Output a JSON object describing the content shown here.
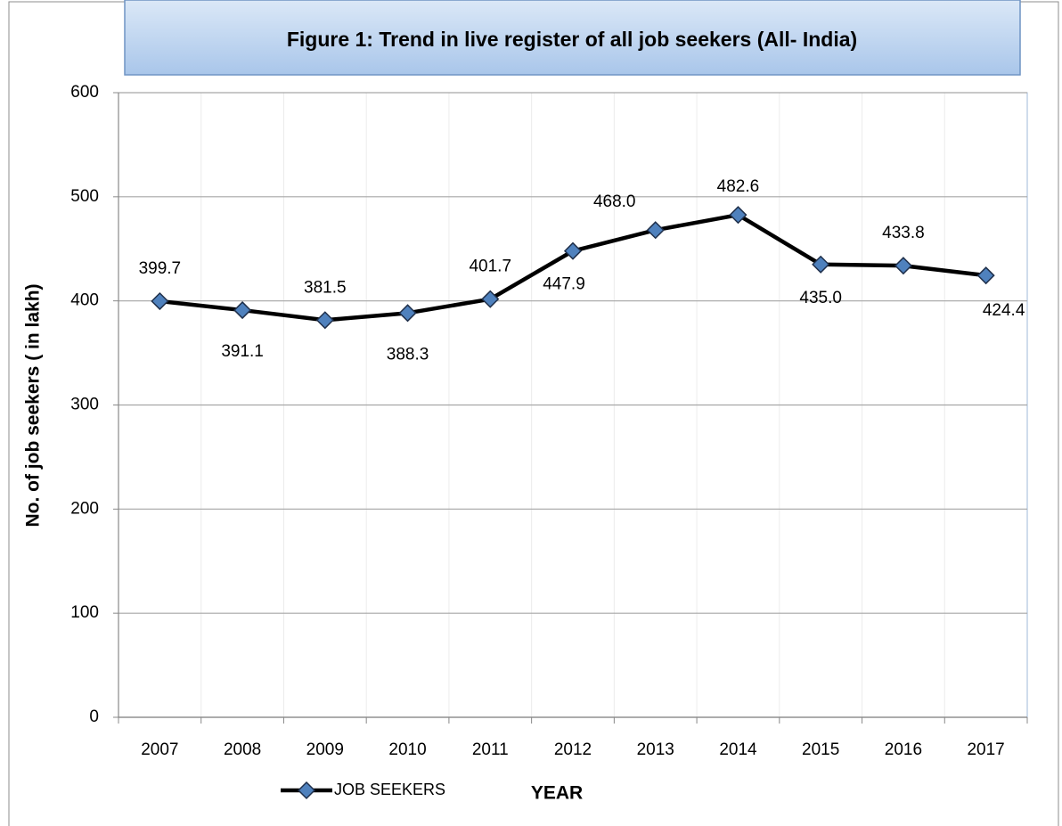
{
  "chart_data": {
    "type": "line",
    "title": "Figure 1: Trend in live register of all job seekers (All- India)",
    "x_label": "YEAR",
    "y_label": "No. of job seekers ( in lakh)",
    "categories": [
      "2007",
      "2008",
      "2009",
      "2010",
      "2011",
      "2012",
      "2013",
      "2014",
      "2015",
      "2016",
      "2017"
    ],
    "series": [
      {
        "name": "JOB SEEKERS",
        "color": "#000000",
        "marker_color": "#4f81bd",
        "values": [
          399.7,
          391.1,
          381.5,
          388.3,
          401.7,
          447.9,
          468.0,
          482.6,
          435.0,
          433.8,
          424.4
        ],
        "value_labels": [
          "399.7",
          "391.1",
          "381.5",
          "388.3",
          "401.7",
          "447.9",
          "468.0",
          "482.6",
          "435.0",
          "433.8",
          "424.4"
        ]
      }
    ],
    "ylim": [
      0,
      600
    ],
    "yticks": [
      0,
      100,
      200,
      300,
      400,
      500,
      600
    ],
    "grid": true,
    "legend": "bottom"
  }
}
